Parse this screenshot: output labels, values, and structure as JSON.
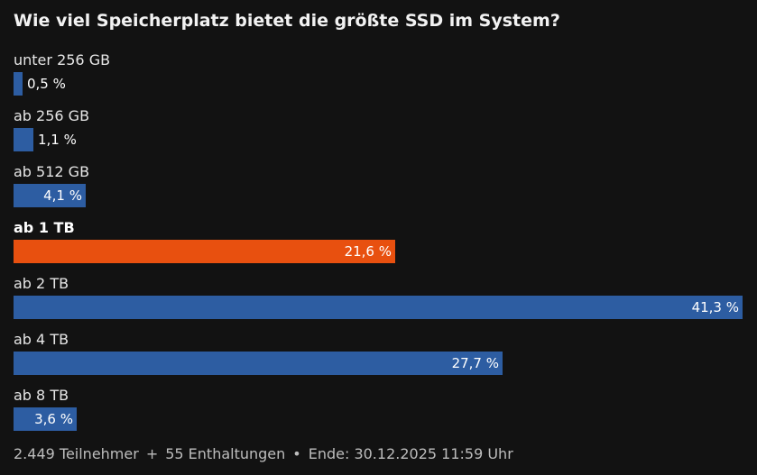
{
  "poll": {
    "question": "Wie viel Speicherplatz bietet die größte SSD im System?"
  },
  "chart_data": {
    "type": "bar",
    "orientation": "horizontal",
    "title": "Wie viel Speicherplatz bietet die größte SSD im System?",
    "categories": [
      "unter 256 GB",
      "ab 256 GB",
      "ab 512 GB",
      "ab 1 TB",
      "ab 2 TB",
      "ab 4 TB",
      "ab 8 TB"
    ],
    "values": [
      0.5,
      1.1,
      4.1,
      21.6,
      41.3,
      27.7,
      3.6
    ],
    "value_labels": [
      "0,5 %",
      "1,1 %",
      "4,1 %",
      "21,6 %",
      "41,3 %",
      "27,7 %",
      "3,6 %"
    ],
    "highlight_index": 3,
    "colors": {
      "bar": "#2d5da2",
      "highlight": "#e8500f",
      "background": "#121212"
    },
    "grid": false,
    "legend": "none"
  },
  "footer": {
    "participants": "2.449 Teilnehmer",
    "sep1": "+",
    "abstentions": "55 Enthaltungen",
    "sep2": "•",
    "end": "Ende: 30.12.2025 11:59 Uhr"
  }
}
